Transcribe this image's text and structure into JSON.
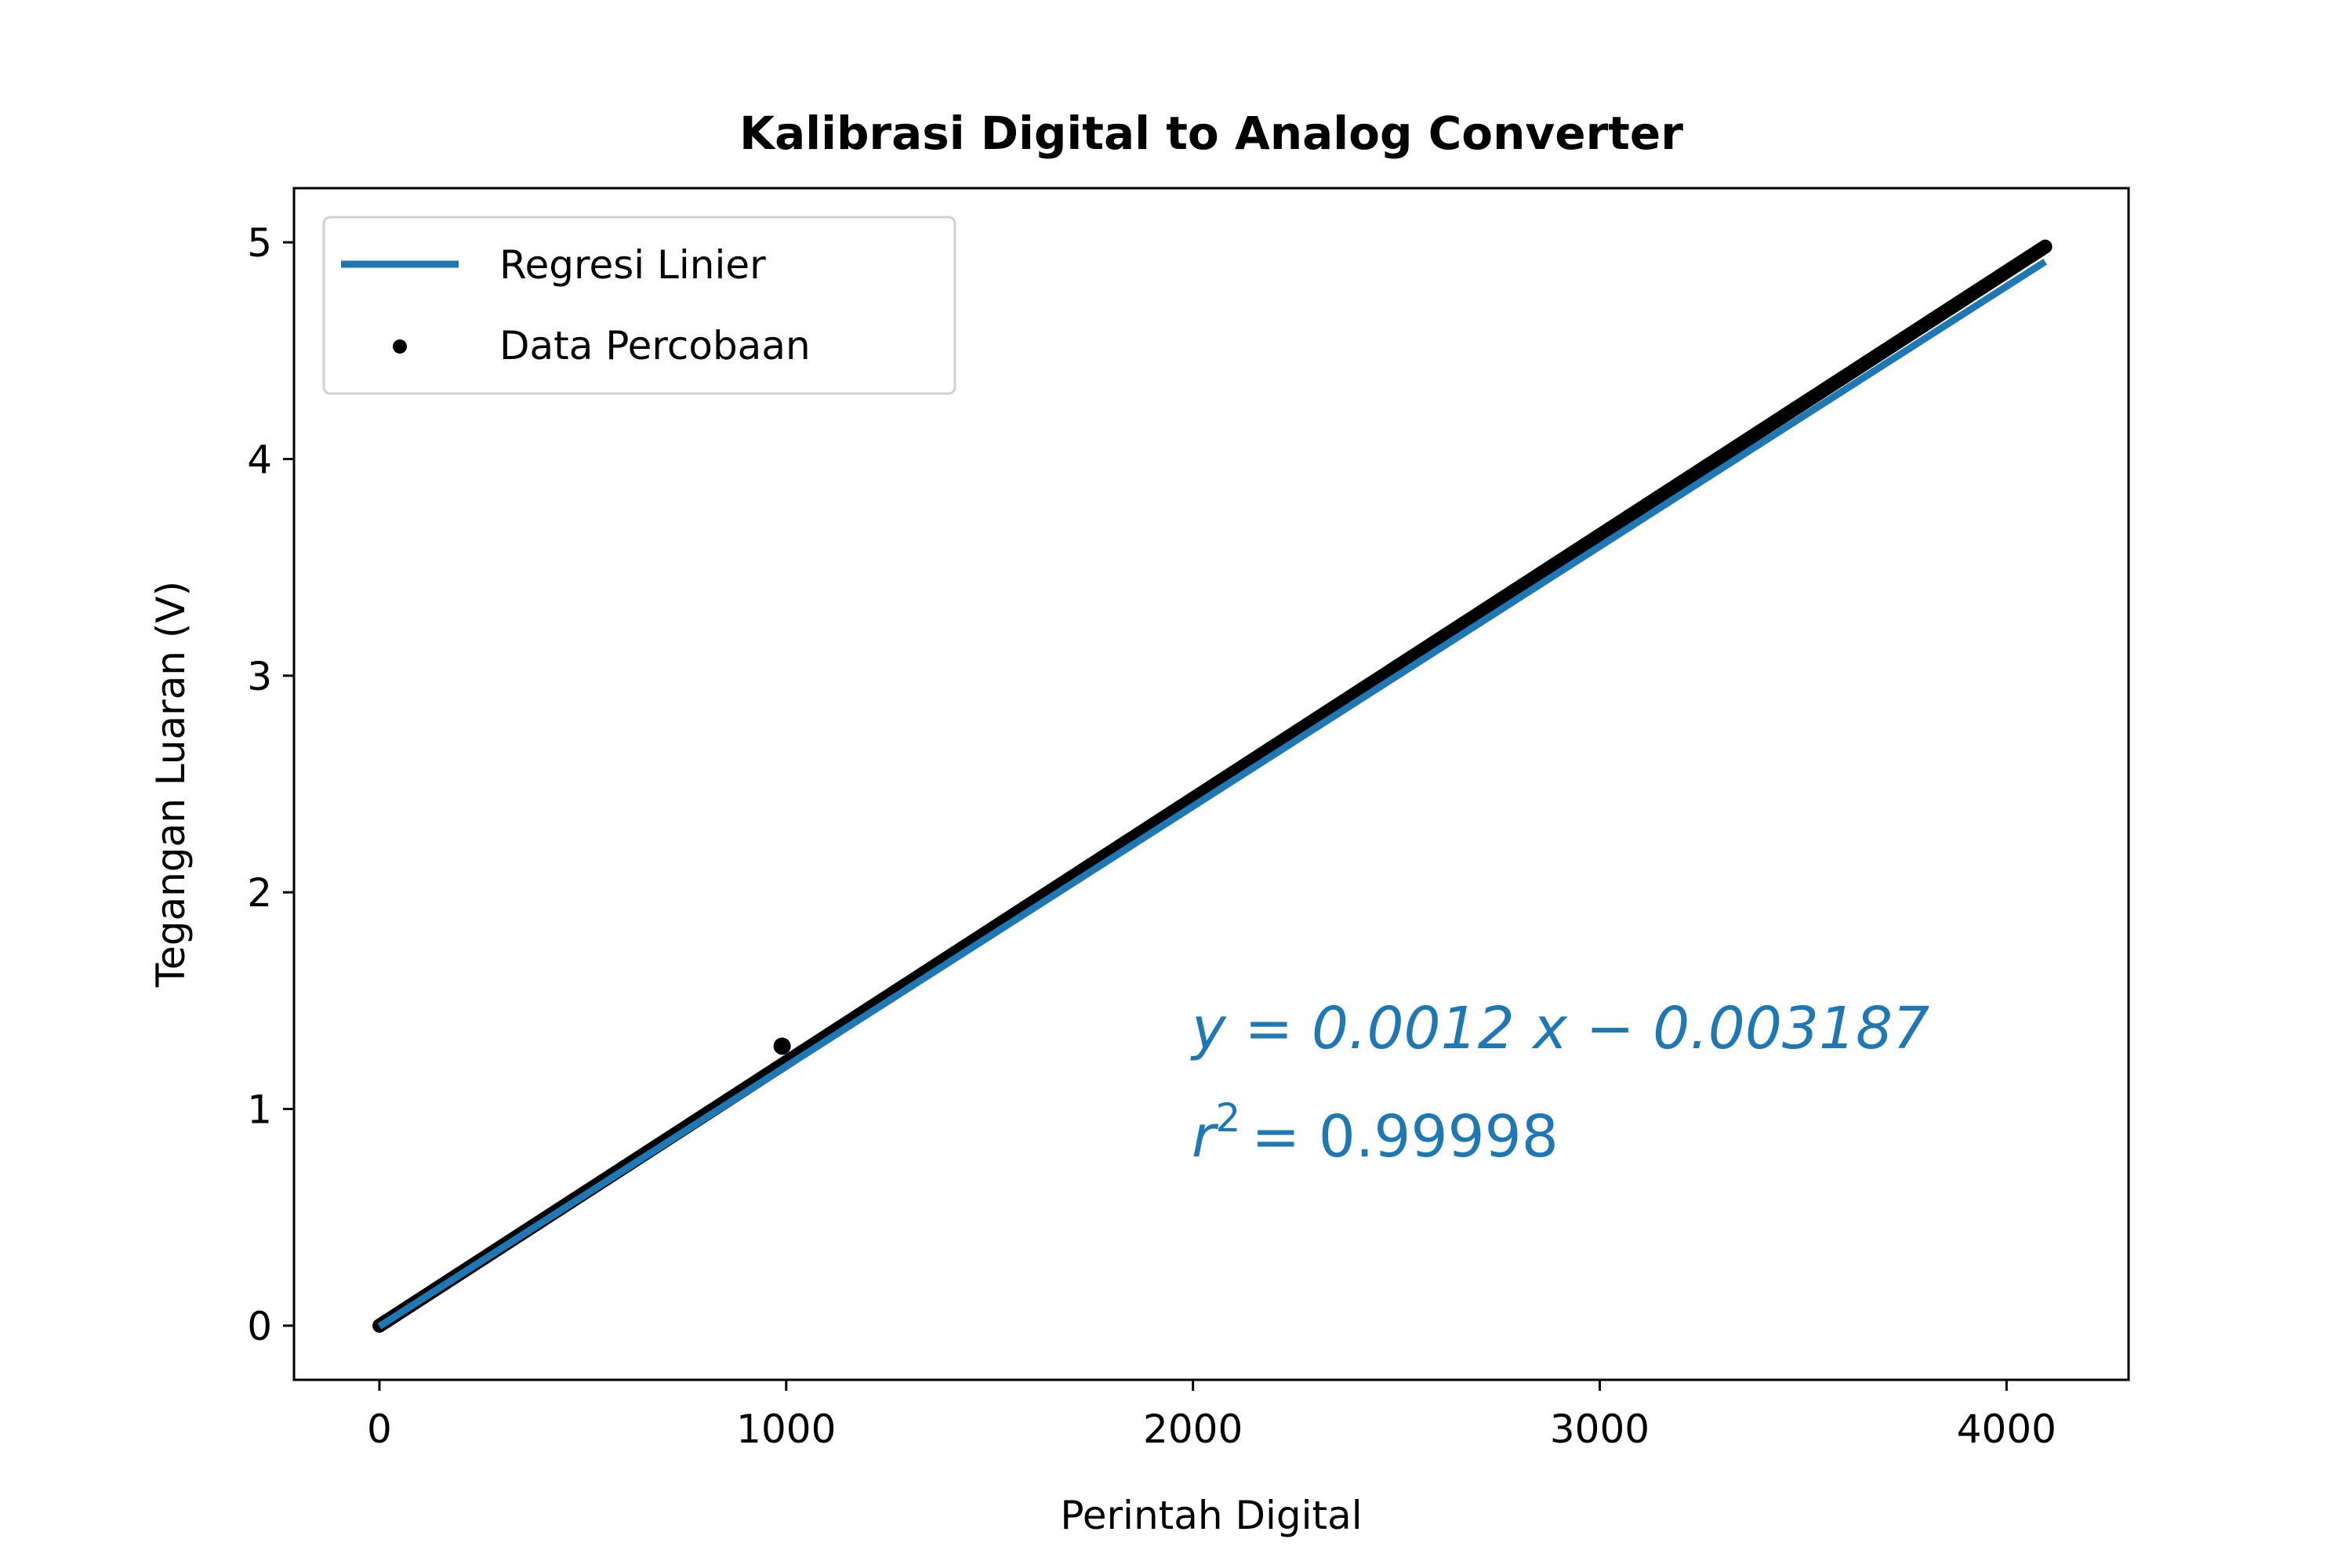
{
  "chart_data": {
    "type": "scatter",
    "title": "Kalibrasi Digital to Analog Converter",
    "xlabel": "Perintah Digital",
    "ylabel": "Tegangan Luaran (V)",
    "xlim": [
      -210,
      4300
    ],
    "ylim": [
      -0.25,
      5.25
    ],
    "xticks": [
      0,
      1000,
      2000,
      3000,
      4000
    ],
    "yticks": [
      0,
      1,
      2,
      3,
      4,
      5
    ],
    "grid": false,
    "legend_position": "upper-left",
    "series": [
      {
        "name": "Regresi Linier",
        "kind": "line",
        "color": "#1f77b4",
        "slope": 0.0012,
        "intercept": -0.003187,
        "x": [
          0,
          4095
        ],
        "y": [
          -0.003187,
          4.910813
        ]
      },
      {
        "name": "Data Percobaan",
        "kind": "scatter",
        "color": "#000000",
        "x_range": [
          0,
          4095
        ],
        "x_step": 5,
        "y_range": [
          0,
          4.98
        ],
        "outlier": {
          "x": 990,
          "y": 1.29
        }
      }
    ],
    "annotation": {
      "equation": "y = 0.0012 x − 0.003187",
      "r_squared_label": "r",
      "r_squared_exponent": "2",
      "r_squared_value": "= 0.99998",
      "color": "#1f77b4"
    }
  }
}
